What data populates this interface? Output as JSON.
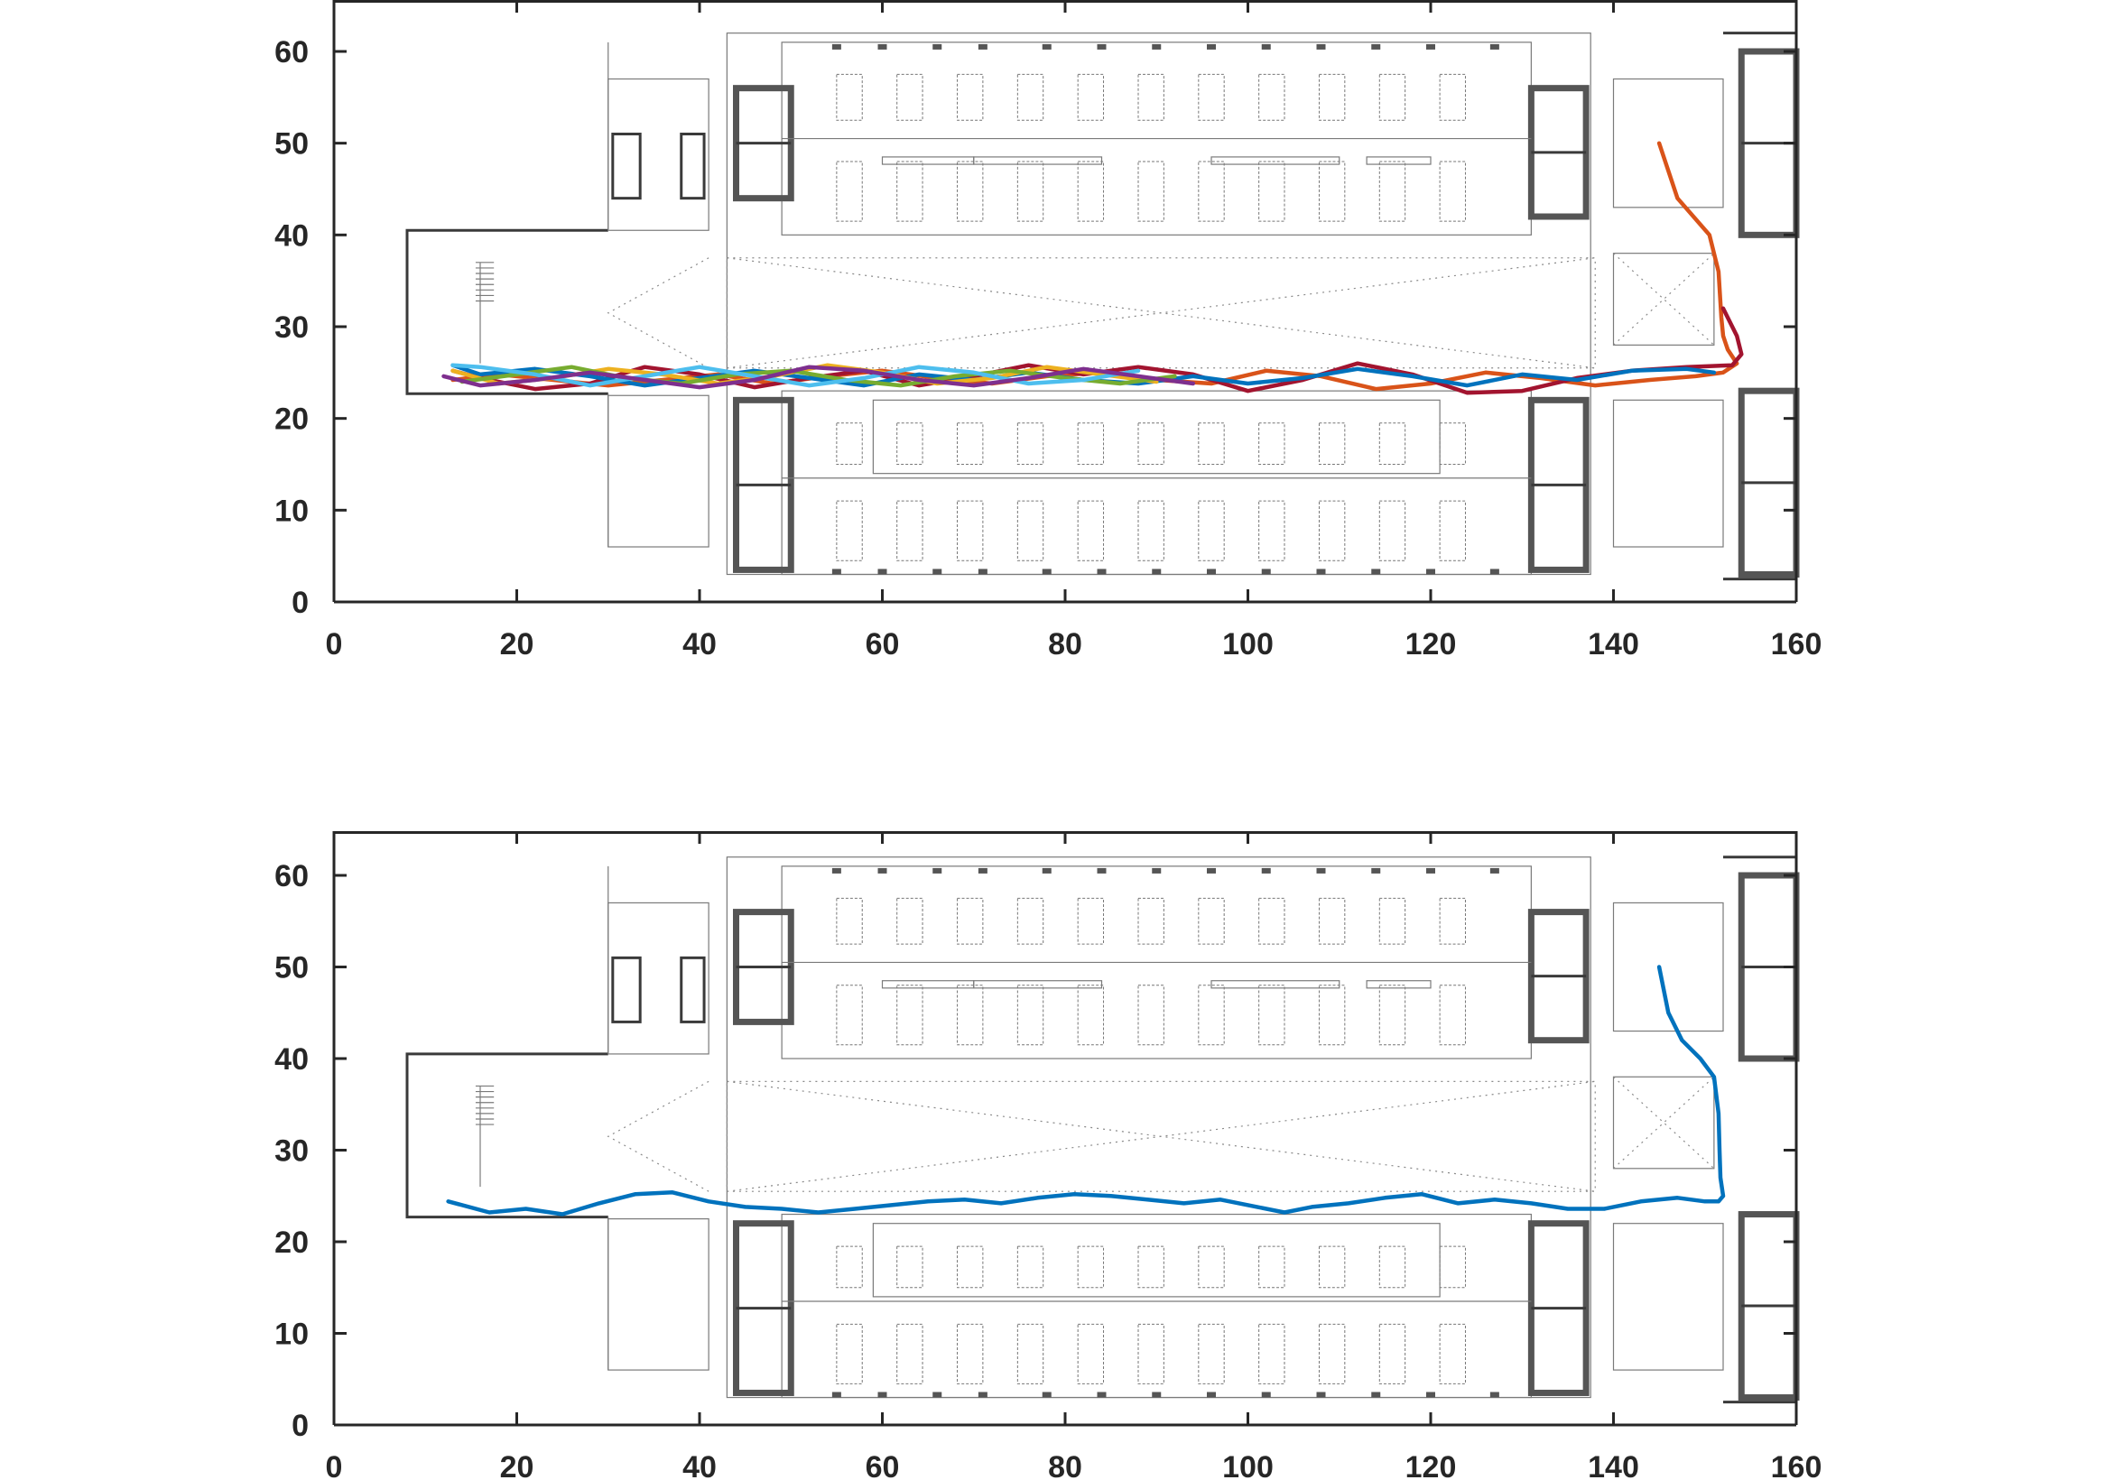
{
  "chart_data": [
    {
      "type": "line",
      "title": "",
      "xlabel": "",
      "ylabel": "",
      "xlim": [
        0,
        160
      ],
      "ylim": [
        0,
        65
      ],
      "xticks": [
        0,
        20,
        40,
        60,
        80,
        100,
        120,
        140,
        160
      ],
      "yticks": [
        0,
        10,
        20,
        30,
        40,
        50,
        60
      ],
      "xticklabels": [
        "0",
        "20",
        "40",
        "60",
        "80",
        "100",
        "120",
        "140",
        "160"
      ],
      "yticklabels": [
        "0",
        "10",
        "20",
        "30",
        "40",
        "50",
        "60"
      ],
      "background": "building floor plan",
      "grid": false,
      "legend": "none",
      "series": [
        {
          "color": "#D95319",
          "x": [
            145,
            147,
            150.5,
            151.5,
            151.8,
            152,
            152.5,
            153.5,
            152,
            149,
            144,
            138,
            132,
            126,
            120,
            114,
            108,
            102,
            96,
            90,
            84,
            78,
            72,
            66,
            60,
            54,
            48,
            42,
            36,
            30,
            24,
            18,
            13
          ],
          "y": [
            50,
            44,
            40,
            36,
            31,
            29,
            27.5,
            26,
            25,
            24.6,
            24.2,
            23.6,
            24.4,
            25,
            23.8,
            23.2,
            24.6,
            25.2,
            23.8,
            24.2,
            25,
            24.6,
            23.8,
            24.4,
            25.2,
            24.6,
            23.8,
            24.8,
            24.2,
            23.6,
            24.2,
            24.8,
            24.2
          ]
        },
        {
          "color": "#A2142F",
          "x": [
            152,
            153.5,
            154,
            153,
            148,
            142,
            136,
            130,
            124,
            118,
            112,
            106,
            100,
            94,
            88,
            82,
            76,
            70,
            64,
            58,
            52,
            46,
            40,
            34,
            28,
            22,
            16,
            13
          ],
          "y": [
            32,
            29,
            27,
            25.8,
            25.6,
            25.2,
            24.4,
            23,
            22.8,
            24.8,
            26,
            24.2,
            23,
            24.8,
            25.6,
            24.8,
            25.8,
            24.6,
            23.6,
            25.2,
            24.4,
            23.4,
            24.8,
            25.6,
            23.8,
            23.2,
            24.4,
            25.2
          ]
        },
        {
          "color": "#0072BD",
          "x": [
            151,
            148,
            142,
            136,
            130,
            124,
            118,
            112,
            106,
            100,
            94,
            88,
            82,
            76,
            70,
            64,
            58,
            52,
            46,
            40,
            34,
            28,
            22,
            16,
            13
          ],
          "y": [
            25,
            25.4,
            25.2,
            24.2,
            24.8,
            23.6,
            24.6,
            25.4,
            24.4,
            23.8,
            24.6,
            23.8,
            24.2,
            25,
            24.2,
            24.8,
            23.6,
            24.4,
            25.2,
            24.4,
            23.6,
            24.6,
            25.4,
            24.8,
            25.8
          ]
        },
        {
          "color": "#EDB120",
          "x": [
            90,
            84,
            78,
            72,
            66,
            60,
            54,
            48,
            42,
            36,
            30,
            24,
            18,
            13
          ],
          "y": [
            24,
            24.8,
            25.6,
            24.4,
            23.8,
            25,
            25.8,
            24.6,
            23.8,
            24.8,
            25.4,
            24.4,
            23.8,
            25.2
          ]
        },
        {
          "color": "#77AC30",
          "x": [
            92,
            86,
            80,
            74,
            68,
            62,
            56,
            50,
            44,
            38,
            32,
            26,
            20,
            14
          ],
          "y": [
            24.6,
            23.8,
            24.4,
            25.2,
            24.6,
            23.6,
            24.2,
            25.2,
            24.8,
            23.8,
            24.4,
            25.6,
            24.8,
            24
          ]
        },
        {
          "color": "#4DBEEE",
          "x": [
            88,
            82,
            76,
            70,
            64,
            58,
            52,
            46,
            40,
            34,
            28,
            22,
            16,
            13
          ],
          "y": [
            25.2,
            24.2,
            23.8,
            25,
            25.6,
            24.4,
            23.6,
            24.6,
            25.6,
            24.6,
            23.6,
            24.8,
            25.6,
            25.8
          ]
        },
        {
          "color": "#7E2F8E",
          "x": [
            94,
            88,
            82,
            76,
            70,
            64,
            58,
            52,
            46,
            40,
            34,
            28,
            22,
            16,
            12
          ],
          "y": [
            23.8,
            24.6,
            25.4,
            24.4,
            23.6,
            24.2,
            25.2,
            25.6,
            24.2,
            23.4,
            24.2,
            25,
            24.2,
            23.6,
            24.6
          ]
        }
      ]
    },
    {
      "type": "line",
      "title": "",
      "xlabel": "",
      "ylabel": "",
      "xlim": [
        0,
        160
      ],
      "ylim": [
        0,
        65
      ],
      "xticks": [
        0,
        20,
        40,
        60,
        80,
        100,
        120,
        140,
        160
      ],
      "yticks": [
        0,
        10,
        20,
        30,
        40,
        50,
        60
      ],
      "xticklabels": [
        "0",
        "20",
        "40",
        "60",
        "80",
        "100",
        "120",
        "140",
        "160"
      ],
      "yticklabels": [
        "0",
        "10",
        "20",
        "30",
        "40",
        "50",
        "60"
      ],
      "background": "building floor plan",
      "grid": false,
      "legend": "none",
      "series": [
        {
          "color": "#0072BD",
          "x": [
            145,
            146,
            147.5,
            149.5,
            151,
            151.5,
            151.6,
            151.7,
            152,
            151.5,
            150,
            147,
            143,
            139,
            135,
            131,
            127,
            123,
            119,
            115,
            111,
            107,
            104,
            101,
            97,
            93,
            89,
            85,
            81,
            77,
            73,
            69,
            65,
            61,
            57,
            53,
            49,
            45,
            41,
            37,
            33,
            29,
            25,
            21,
            17,
            12.5
          ],
          "y": [
            50,
            45,
            42,
            40,
            38,
            34,
            30,
            27,
            25,
            24.4,
            24.4,
            24.8,
            24.4,
            23.6,
            23.6,
            24.2,
            24.6,
            24.2,
            25.2,
            24.8,
            24.2,
            23.8,
            23.2,
            23.8,
            24.6,
            24.2,
            24.6,
            25.0,
            25.2,
            24.8,
            24.2,
            24.6,
            24.4,
            24.0,
            23.6,
            23.2,
            23.6,
            23.8,
            24.4,
            25.4,
            25.2,
            24.2,
            23.0,
            23.6,
            23.2,
            24.4
          ]
        }
      ]
    }
  ]
}
